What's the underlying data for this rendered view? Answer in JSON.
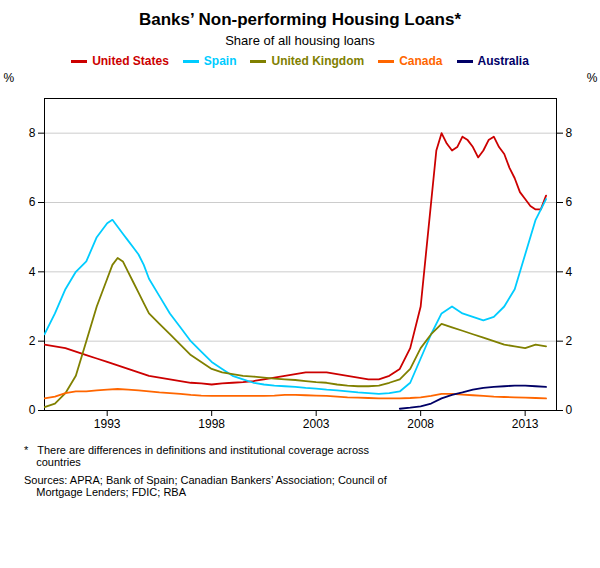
{
  "chart_data": {
    "type": "line",
    "title": "Banks’ Non-performing Housing Loans*",
    "subtitle": "Share of all housing loans",
    "ylabel": "%",
    "y2label": "%",
    "footnotes": [
      "*   There are differences in definitions and institutional coverage across\n    countries",
      "Sources: APRA; Bank of Spain; Canadian Bankers’ Association; Council of\n    Mortgage Lenders; FDIC; RBA"
    ],
    "xlim": [
      1990.0,
      2014.5
    ],
    "xticks": [
      1993,
      1998,
      2003,
      2008,
      2013
    ],
    "ylim": [
      0,
      9
    ],
    "yticks": [
      0,
      2,
      4,
      6,
      8
    ],
    "y2lim": [
      0,
      9
    ],
    "y2ticks": [
      0,
      2,
      4,
      6,
      8
    ],
    "grid": true,
    "series": [
      {
        "name": "United States",
        "color": "#cc0000",
        "x": [
          1990.0,
          1990.5,
          1991.0,
          1991.5,
          1992.0,
          1992.5,
          1993.0,
          1993.5,
          1994.0,
          1994.5,
          1995.0,
          1995.5,
          1996.0,
          1996.5,
          1997.0,
          1997.5,
          1998.0,
          1998.5,
          1999.0,
          1999.5,
          2000.0,
          2000.5,
          2001.0,
          2001.5,
          2002.0,
          2002.5,
          2003.0,
          2003.5,
          2004.0,
          2004.5,
          2005.0,
          2005.5,
          2006.0,
          2006.5,
          2007.0,
          2007.5,
          2008.0,
          2008.25,
          2008.5,
          2008.75,
          2009.0,
          2009.25,
          2009.5,
          2009.75,
          2010.0,
          2010.25,
          2010.5,
          2010.75,
          2011.0,
          2011.25,
          2011.5,
          2011.75,
          2012.0,
          2012.25,
          2012.5,
          2012.75,
          2013.0,
          2013.25,
          2013.5,
          2013.75,
          2014.0
        ],
        "values": [
          1.9,
          1.85,
          1.8,
          1.7,
          1.6,
          1.5,
          1.4,
          1.3,
          1.2,
          1.1,
          1.0,
          0.95,
          0.9,
          0.85,
          0.8,
          0.78,
          0.75,
          0.78,
          0.8,
          0.82,
          0.85,
          0.9,
          0.95,
          1.0,
          1.05,
          1.1,
          1.1,
          1.1,
          1.05,
          1.0,
          0.95,
          0.9,
          0.9,
          1.0,
          1.2,
          1.8,
          3.0,
          4.5,
          6.0,
          7.5,
          8.0,
          7.7,
          7.5,
          7.6,
          7.9,
          7.8,
          7.6,
          7.3,
          7.5,
          7.8,
          7.9,
          7.6,
          7.4,
          7.0,
          6.7,
          6.3,
          6.1,
          5.9,
          5.8,
          5.8,
          6.2
        ]
      },
      {
        "name": "Spain",
        "color": "#00ccff",
        "x": [
          1990.0,
          1990.5,
          1991.0,
          1991.5,
          1992.0,
          1992.5,
          1993.0,
          1993.25,
          1993.5,
          1993.75,
          1994.0,
          1994.25,
          1994.5,
          1994.75,
          1995.0,
          1995.5,
          1996.0,
          1996.5,
          1997.0,
          1997.5,
          1998.0,
          1998.5,
          1999.0,
          1999.5,
          2000.0,
          2000.5,
          2001.0,
          2001.5,
          2002.0,
          2002.5,
          2003.0,
          2003.5,
          2004.0,
          2004.5,
          2005.0,
          2005.5,
          2006.0,
          2006.5,
          2007.0,
          2007.5,
          2008.0,
          2008.5,
          2009.0,
          2009.5,
          2010.0,
          2010.5,
          2011.0,
          2011.5,
          2012.0,
          2012.5,
          2013.0,
          2013.5,
          2014.0
        ],
        "values": [
          2.2,
          2.8,
          3.5,
          4.0,
          4.3,
          5.0,
          5.4,
          5.5,
          5.3,
          5.1,
          4.9,
          4.7,
          4.5,
          4.2,
          3.8,
          3.3,
          2.8,
          2.4,
          2.0,
          1.7,
          1.4,
          1.2,
          1.0,
          0.9,
          0.8,
          0.75,
          0.72,
          0.7,
          0.68,
          0.65,
          0.63,
          0.6,
          0.58,
          0.55,
          0.52,
          0.5,
          0.48,
          0.5,
          0.55,
          0.8,
          1.5,
          2.2,
          2.8,
          3.0,
          2.8,
          2.7,
          2.6,
          2.7,
          3.0,
          3.5,
          4.5,
          5.5,
          6.1
        ]
      },
      {
        "name": "United Kingdom",
        "color": "#808000",
        "x": [
          1990.0,
          1990.5,
          1991.0,
          1991.5,
          1992.0,
          1992.5,
          1993.0,
          1993.25,
          1993.5,
          1993.75,
          1994.0,
          1994.25,
          1994.5,
          1994.75,
          1995.0,
          1995.5,
          1996.0,
          1996.5,
          1997.0,
          1997.5,
          1998.0,
          1998.5,
          1999.0,
          1999.5,
          2000.0,
          2000.5,
          2001.0,
          2001.5,
          2002.0,
          2002.5,
          2003.0,
          2003.5,
          2004.0,
          2004.5,
          2005.0,
          2005.5,
          2006.0,
          2006.5,
          2007.0,
          2007.5,
          2008.0,
          2008.5,
          2009.0,
          2009.5,
          2010.0,
          2010.5,
          2011.0,
          2011.5,
          2012.0,
          2012.5,
          2013.0,
          2013.5,
          2014.0
        ],
        "values": [
          0.1,
          0.2,
          0.5,
          1.0,
          2.0,
          3.0,
          3.8,
          4.2,
          4.4,
          4.3,
          4.0,
          3.7,
          3.4,
          3.1,
          2.8,
          2.5,
          2.2,
          1.9,
          1.6,
          1.4,
          1.2,
          1.1,
          1.05,
          1.0,
          0.98,
          0.95,
          0.92,
          0.9,
          0.88,
          0.85,
          0.82,
          0.8,
          0.75,
          0.72,
          0.7,
          0.7,
          0.72,
          0.8,
          0.9,
          1.2,
          1.8,
          2.2,
          2.5,
          2.4,
          2.3,
          2.2,
          2.1,
          2.0,
          1.9,
          1.85,
          1.8,
          1.9,
          1.85
        ]
      },
      {
        "name": "Canada",
        "color": "#ff6600",
        "x": [
          1990.0,
          1990.5,
          1991.0,
          1991.5,
          1992.0,
          1992.5,
          1993.0,
          1993.5,
          1994.0,
          1994.5,
          1995.0,
          1995.5,
          1996.0,
          1996.5,
          1997.0,
          1997.5,
          1998.0,
          1998.5,
          1999.0,
          1999.5,
          2000.0,
          2000.5,
          2001.0,
          2001.5,
          2002.0,
          2002.5,
          2003.0,
          2003.5,
          2004.0,
          2004.5,
          2005.0,
          2005.5,
          2006.0,
          2006.5,
          2007.0,
          2007.5,
          2008.0,
          2008.5,
          2009.0,
          2009.5,
          2010.0,
          2010.5,
          2011.0,
          2011.5,
          2012.0,
          2012.5,
          2013.0,
          2013.5,
          2014.0
        ],
        "values": [
          0.35,
          0.4,
          0.5,
          0.55,
          0.55,
          0.58,
          0.6,
          0.62,
          0.6,
          0.58,
          0.55,
          0.52,
          0.5,
          0.48,
          0.45,
          0.43,
          0.42,
          0.42,
          0.42,
          0.42,
          0.42,
          0.42,
          0.43,
          0.45,
          0.45,
          0.44,
          0.43,
          0.42,
          0.4,
          0.38,
          0.37,
          0.36,
          0.35,
          0.35,
          0.35,
          0.36,
          0.38,
          0.42,
          0.48,
          0.48,
          0.46,
          0.44,
          0.42,
          0.4,
          0.39,
          0.38,
          0.37,
          0.36,
          0.35
        ]
      },
      {
        "name": "Australia",
        "color": "#000066",
        "x": [
          2007.0,
          2007.5,
          2008.0,
          2008.5,
          2009.0,
          2009.5,
          2010.0,
          2010.5,
          2011.0,
          2011.5,
          2012.0,
          2012.5,
          2013.0,
          2013.5,
          2014.0
        ],
        "values": [
          0.05,
          0.08,
          0.12,
          0.2,
          0.35,
          0.45,
          0.52,
          0.6,
          0.65,
          0.68,
          0.7,
          0.72,
          0.72,
          0.7,
          0.68
        ]
      }
    ]
  }
}
